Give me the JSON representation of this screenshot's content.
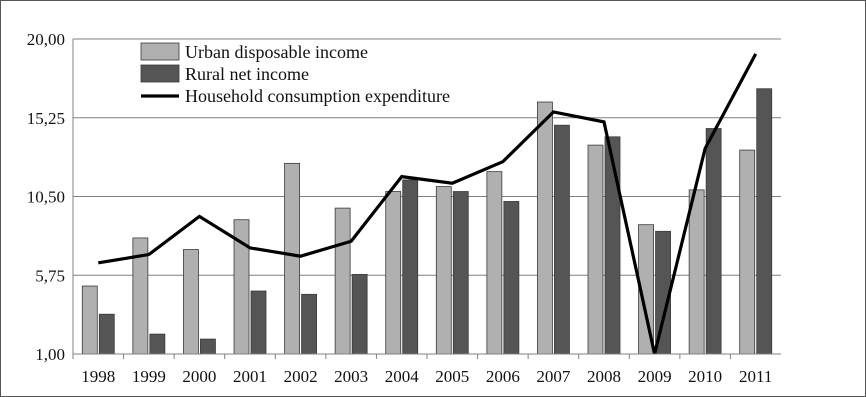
{
  "chart_data": {
    "type": "bar",
    "title": "",
    "xlabel": "",
    "ylabel": "",
    "categories": [
      "1998",
      "1999",
      "2000",
      "2001",
      "2002",
      "2003",
      "2004",
      "2005",
      "2006",
      "2007",
      "2008",
      "2009",
      "2010",
      "2011"
    ],
    "ylim": [
      1.0,
      20.0
    ],
    "yticks": [
      "1,00",
      "5,75",
      "10,50",
      "15,25",
      "20,00"
    ],
    "ytick_values": [
      1.0,
      5.75,
      10.5,
      15.25,
      20.0
    ],
    "grid": "horizontal",
    "legend_position": "top-left",
    "series": [
      {
        "name": "Urban disposable income",
        "kind": "bar",
        "color": "#b0b0b0",
        "values": [
          5.1,
          8.0,
          7.3,
          9.1,
          12.5,
          9.8,
          10.8,
          11.1,
          12.0,
          16.2,
          13.6,
          8.8,
          10.9,
          13.3
        ]
      },
      {
        "name": "Rural net income",
        "kind": "bar",
        "color": "#555555",
        "values": [
          3.4,
          2.2,
          1.9,
          4.8,
          4.6,
          5.8,
          11.5,
          10.8,
          10.2,
          14.8,
          14.1,
          8.4,
          14.6,
          17.0
        ]
      },
      {
        "name": "Household consumption expenditure",
        "kind": "line",
        "color": "#000000",
        "values": [
          6.5,
          7.0,
          9.3,
          7.4,
          6.9,
          7.8,
          11.7,
          11.3,
          12.6,
          15.6,
          15.0,
          -1.0,
          13.4,
          19.1
        ]
      }
    ]
  }
}
